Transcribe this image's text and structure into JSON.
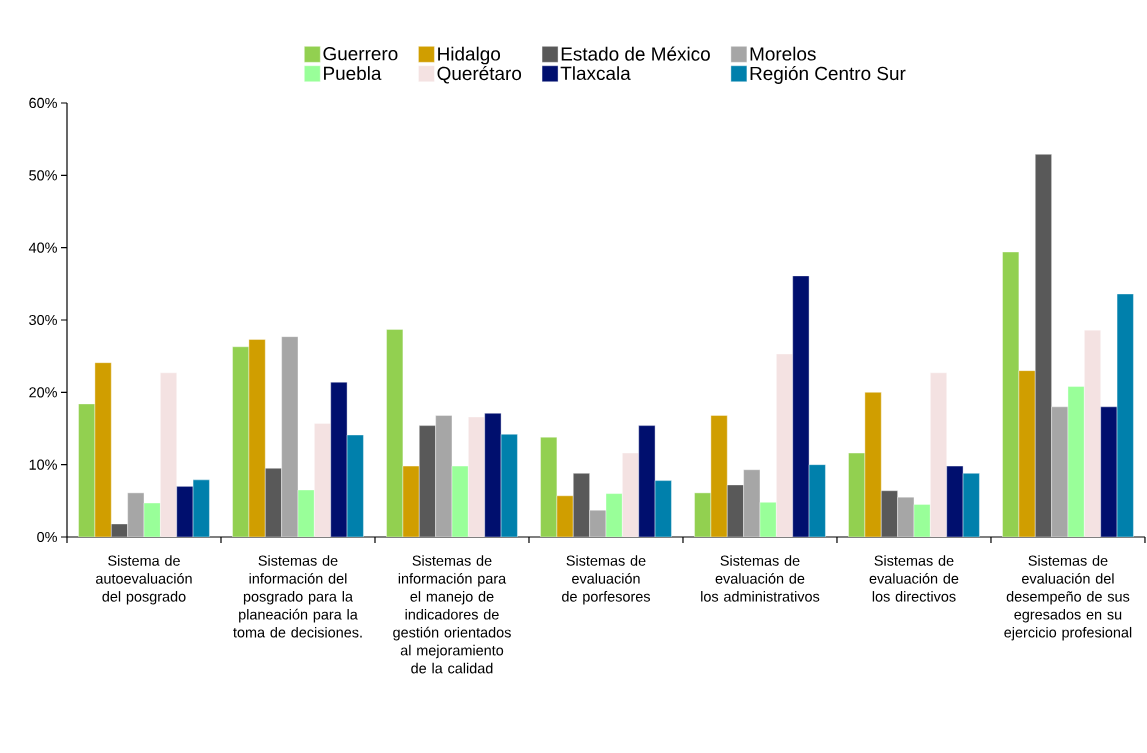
{
  "chart_data": {
    "type": "bar",
    "categories": [
      "Sistema de autoevaluación del posgrado",
      "Sistemas de información del posgrado para la planeación  para la toma de decisiones.",
      "Sistemas de información para el manejo de indicadores de gestión orientados al mejoramiento de la calidad",
      "Sistemas de evaluación de porfesores",
      "Sistemas de evaluación de los administrativos",
      "Sistemas de evaluación de los directivos",
      "Sistemas de evaluación del desempeño de sus egresados en su ejercicio profesional"
    ],
    "series": [
      {
        "name": "Guerrero",
        "color": "#92d050",
        "values": [
          18.4,
          26.3,
          28.7,
          13.8,
          6.1,
          11.6,
          39.4
        ]
      },
      {
        "name": "Hidalgo",
        "color": "#d09e00",
        "values": [
          24.1,
          27.3,
          9.8,
          5.7,
          16.8,
          20.0,
          23.0
        ]
      },
      {
        "name": "Estado de México",
        "color": "#595959",
        "values": [
          1.8,
          9.5,
          15.4,
          8.8,
          7.2,
          6.4,
          52.9
        ]
      },
      {
        "name": "Morelos",
        "color": "#a6a6a6",
        "values": [
          6.1,
          27.7,
          16.8,
          3.7,
          9.3,
          5.5,
          18.0
        ]
      },
      {
        "name": "Puebla",
        "color": "#99ff99",
        "values": [
          4.7,
          6.5,
          9.8,
          6.0,
          4.8,
          4.5,
          20.8
        ]
      },
      {
        "name": "Querétaro",
        "color": "#f4e2e2",
        "values": [
          22.7,
          15.7,
          16.6,
          11.6,
          25.3,
          22.7,
          28.6
        ]
      },
      {
        "name": "Tlaxcala",
        "color": "#000f6e",
        "values": [
          7.0,
          21.4,
          17.1,
          15.4,
          36.1,
          9.8,
          18.0
        ]
      },
      {
        "name": "Región Centro Sur",
        "color": "#0080ac",
        "values": [
          7.9,
          14.1,
          14.2,
          7.8,
          10.0,
          8.8,
          33.6
        ]
      }
    ],
    "ylim": [
      0,
      60
    ],
    "yticks": [
      {
        "value": 0,
        "label": "0%"
      },
      {
        "value": 10,
        "label": "10%"
      },
      {
        "value": 20,
        "label": "20%"
      },
      {
        "value": 30,
        "label": "30%"
      },
      {
        "value": 40,
        "label": "40%"
      },
      {
        "value": 50,
        "label": "50%"
      },
      {
        "value": 60,
        "label": "60%"
      }
    ],
    "grid": false,
    "legend": "top"
  }
}
